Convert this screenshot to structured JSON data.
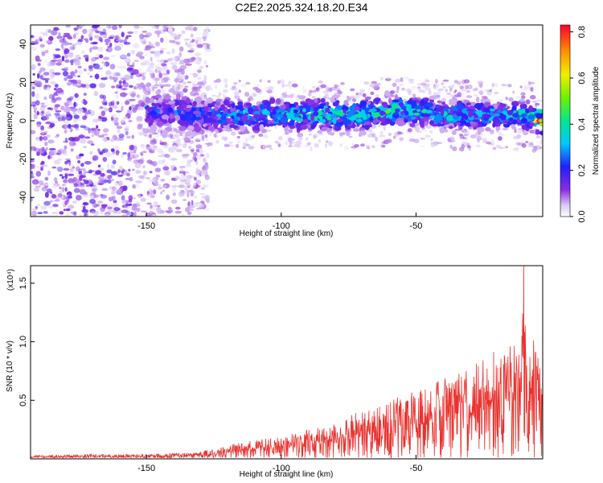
{
  "title": "C2E2.2025.324.18.20.E34",
  "chart_data": [
    {
      "type": "heatmap",
      "xlabel": "Height of straight line (km)",
      "ylabel": "Frequency (Hz)",
      "xlim": [
        -193,
        -3
      ],
      "ylim": [
        -50,
        50
      ],
      "xticks": [
        -150,
        -100,
        -50
      ],
      "xtick_labels": [
        "-150",
        "-100",
        "-50"
      ],
      "yticks": [
        -40,
        -20,
        0,
        20,
        40
      ],
      "ytick_labels": [
        "-40",
        "-20",
        "0",
        "20",
        "40"
      ],
      "colorbar": {
        "label": "Normalized spectral amplitude",
        "range": [
          0.0,
          0.83
        ],
        "ticks": [
          0.0,
          0.2,
          0.4,
          0.6,
          0.8
        ],
        "tick_labels": [
          "0.0",
          "0.2",
          "0.4",
          "0.6",
          "0.8"
        ],
        "colormap": "rainbow"
      },
      "ridge": {
        "description_points_x": [
          -145,
          -130,
          -110,
          -90,
          -70,
          -55,
          -40,
          -25,
          -10,
          -3
        ],
        "frequency_y": [
          5,
          3,
          3,
          3,
          3,
          6,
          3,
          3,
          3,
          0
        ],
        "peak_amplitude": [
          0.25,
          0.3,
          0.35,
          0.4,
          0.45,
          0.45,
          0.4,
          0.4,
          0.45,
          0.83
        ]
      },
      "grid": false
    },
    {
      "type": "line",
      "xlabel": "Height of straight line (km)",
      "ylabel": "SNR (10 * v/v)",
      "scale_label": "(x10⁴)",
      "xlim": [
        -193,
        -3
      ],
      "ylim": [
        0,
        1.65
      ],
      "xticks": [
        -150,
        -100,
        -50
      ],
      "xtick_labels": [
        "-150",
        "-100",
        "-50"
      ],
      "yticks": [
        0.5,
        1.0,
        1.5
      ],
      "ytick_labels": [
        "0.5",
        "1.0",
        "1.5"
      ],
      "series_color": "#e8322e",
      "envelope": {
        "x": [
          -193,
          -170,
          -150,
          -130,
          -120,
          -110,
          -100,
          -90,
          -80,
          -70,
          -60,
          -50,
          -40,
          -30,
          -20,
          -15,
          -10,
          -5,
          -3
        ],
        "y_max": [
          0.03,
          0.04,
          0.04,
          0.06,
          0.12,
          0.16,
          0.2,
          0.25,
          0.3,
          0.42,
          0.5,
          0.58,
          0.68,
          0.78,
          0.95,
          1.0,
          1.65,
          0.9,
          0.8
        ]
      },
      "grid": false
    }
  ]
}
